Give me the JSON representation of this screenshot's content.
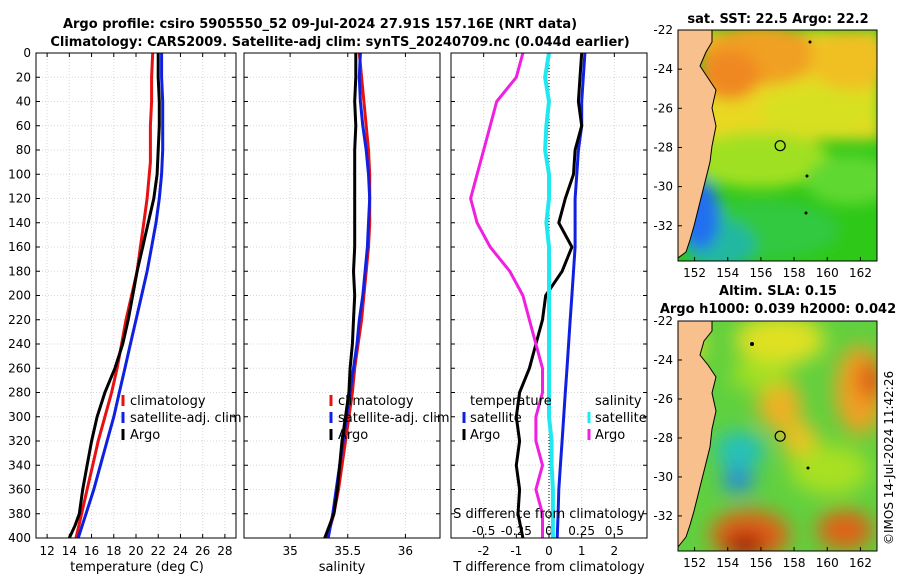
{
  "title_line1": "Argo profile: csiro 5905550_52 09-Jul-2024 27.91S 157.16E (NRT data)",
  "title_line2": "Climatology: CARS2009. Satellite-adj clim: synTS_20240709.nc (0.044d earlier)",
  "watermark": "©IMOS 14-Jul-2024 11:42:26",
  "colors": {
    "red": "#e81010",
    "blue": "#1020e0",
    "black": "#000000",
    "cyan": "#20e8f0",
    "magenta": "#f020e0",
    "land": "#f7c08c"
  },
  "chart_data": [
    {
      "type": "line",
      "id": "temperature",
      "xlabel": "temperature (deg C)",
      "ylabel": "",
      "xlim": [
        11,
        29
      ],
      "ylim": [
        400,
        0
      ],
      "xticks": [
        "12",
        "14",
        "16",
        "18",
        "20",
        "22",
        "24",
        "26",
        "28"
      ],
      "yticks": [
        "0",
        "20",
        "40",
        "60",
        "80",
        "100",
        "120",
        "140",
        "160",
        "180",
        "200",
        "220",
        "240",
        "260",
        "280",
        "300",
        "320",
        "340",
        "360",
        "380",
        "400"
      ],
      "grid": true,
      "legend": [
        "climatology",
        "satellite-adj. clim",
        "Argo"
      ],
      "series": [
        {
          "name": "climatology",
          "color": "#e81010",
          "x": [
            21.5,
            21.4,
            21.4,
            21.3,
            21.3,
            21.3,
            21.2,
            21.0,
            20.7,
            20.4,
            20.1,
            19.6,
            19.1,
            18.7,
            18.3,
            17.8,
            17.2,
            16.6,
            16.1,
            15.6,
            15.1,
            14.6
          ],
          "y": [
            0,
            20,
            40,
            60,
            80,
            90,
            100,
            120,
            140,
            160,
            180,
            200,
            220,
            240,
            260,
            280,
            300,
            320,
            340,
            360,
            380,
            400
          ]
        },
        {
          "name": "satellite-adj. clim",
          "color": "#1020e0",
          "x": [
            22.3,
            22.3,
            22.4,
            22.4,
            22.4,
            22.3,
            22.1,
            21.8,
            21.4,
            21.0,
            20.5,
            20.0,
            19.5,
            19.0,
            18.5,
            18.0,
            17.4,
            16.8,
            16.2,
            15.5,
            14.8
          ],
          "y": [
            0,
            20,
            40,
            60,
            80,
            100,
            120,
            140,
            160,
            180,
            200,
            220,
            240,
            260,
            280,
            300,
            320,
            340,
            360,
            380,
            400
          ]
        },
        {
          "name": "Argo",
          "color": "#000000",
          "x": [
            22.0,
            22.0,
            22.1,
            22.1,
            22.0,
            21.9,
            21.6,
            21.1,
            20.6,
            20.1,
            19.7,
            19.3,
            18.8,
            18.1,
            17.2,
            16.5,
            16.0,
            15.6,
            15.2,
            14.9,
            14.5,
            14.0
          ],
          "y": [
            0,
            20,
            40,
            60,
            80,
            100,
            120,
            140,
            160,
            180,
            200,
            220,
            240,
            260,
            280,
            300,
            320,
            340,
            360,
            380,
            390,
            400
          ]
        }
      ]
    },
    {
      "type": "line",
      "id": "salinity",
      "xlabel": "salinity",
      "ylabel": "",
      "xlim": [
        34.6,
        36.3
      ],
      "ylim": [
        400,
        0
      ],
      "xticks": [
        "35",
        "35.5",
        "36"
      ],
      "grid": true,
      "legend": [
        "climatology",
        "satellite-adj. clim",
        "Argo"
      ],
      "series": [
        {
          "name": "climatology",
          "color": "#e81010",
          "x": [
            35.6,
            35.62,
            35.64,
            35.66,
            35.68,
            35.69,
            35.69,
            35.69,
            35.68,
            35.66,
            35.64,
            35.62,
            35.59,
            35.56,
            35.54,
            35.51,
            35.48,
            35.45,
            35.42,
            35.38,
            35.35,
            35.32
          ],
          "y": [
            0,
            20,
            40,
            60,
            80,
            100,
            120,
            140,
            160,
            180,
            200,
            220,
            240,
            260,
            280,
            300,
            320,
            340,
            360,
            380,
            390,
            400
          ]
        },
        {
          "name": "satellite-adj. clim",
          "color": "#1020e0",
          "x": [
            35.61,
            35.6,
            35.61,
            35.63,
            35.66,
            35.68,
            35.69,
            35.68,
            35.67,
            35.65,
            35.63,
            35.6,
            35.58,
            35.55,
            35.52,
            35.49,
            35.46,
            35.43,
            35.4,
            35.37,
            35.33
          ],
          "y": [
            0,
            20,
            40,
            60,
            80,
            100,
            120,
            140,
            160,
            180,
            200,
            220,
            240,
            260,
            280,
            300,
            320,
            340,
            360,
            380,
            400
          ]
        },
        {
          "name": "Argo",
          "color": "#000000",
          "x": [
            35.57,
            35.57,
            35.56,
            35.57,
            35.56,
            35.56,
            35.56,
            35.56,
            35.56,
            35.55,
            35.56,
            35.55,
            35.54,
            35.52,
            35.51,
            35.48,
            35.45,
            35.43,
            35.41,
            35.38,
            35.34,
            35.3
          ],
          "y": [
            0,
            20,
            40,
            60,
            80,
            100,
            120,
            140,
            160,
            180,
            200,
            220,
            240,
            260,
            280,
            300,
            320,
            340,
            360,
            380,
            390,
            400
          ]
        }
      ]
    },
    {
      "type": "line",
      "id": "difference",
      "xlabel": "T difference from climatology",
      "top_axis_label": "S difference from climatology",
      "top_ticks": [
        "-0.5",
        "-0.25",
        "0",
        "0.25",
        "0.5"
      ],
      "xlim": [
        -3,
        3
      ],
      "ylim": [
        400,
        0
      ],
      "xticks": [
        "-2",
        "-1",
        "0",
        "1",
        "2"
      ],
      "grid": true,
      "legend_left_title": "temperature",
      "legend_right_title": "salinity",
      "legend": [
        "satellite",
        "Argo",
        "satellite",
        "Argo"
      ],
      "series": [
        {
          "name": "T satellite",
          "color": "#1020e0",
          "x": [
            1.1,
            1.05,
            1.0,
            1.0,
            0.9,
            0.85,
            0.8,
            0.8,
            0.8,
            0.75,
            0.7,
            0.65,
            0.6,
            0.55,
            0.5,
            0.45,
            0.4,
            0.35,
            0.3,
            0.28,
            0.25
          ],
          "y": [
            0,
            20,
            40,
            60,
            80,
            100,
            120,
            140,
            160,
            180,
            200,
            220,
            240,
            260,
            280,
            300,
            320,
            340,
            360,
            380,
            400
          ]
        },
        {
          "name": "T Argo",
          "color": "#000000",
          "x": [
            1.0,
            0.95,
            0.9,
            1.0,
            0.8,
            0.75,
            0.5,
            0.3,
            0.7,
            0.4,
            -0.1,
            -0.2,
            -0.4,
            -0.6,
            -0.9,
            -1.0,
            -0.9,
            -1.0,
            -0.9,
            -0.95,
            -0.8
          ],
          "y": [
            0,
            20,
            40,
            60,
            80,
            100,
            120,
            140,
            160,
            180,
            200,
            220,
            240,
            260,
            280,
            300,
            320,
            340,
            360,
            380,
            400
          ]
        },
        {
          "name": "S satellite",
          "color": "#20e8f0",
          "x": [
            0.0,
            -0.03,
            0.0,
            -0.02,
            -0.03,
            0.0,
            0.0,
            -0.02,
            0.0,
            0.0,
            0.0,
            0.0,
            0.0,
            0.0,
            0.0,
            0.0,
            0.02,
            0.02,
            0.03,
            0.03,
            0.03
          ],
          "y": [
            0,
            20,
            40,
            60,
            80,
            100,
            120,
            140,
            160,
            180,
            200,
            220,
            240,
            260,
            280,
            300,
            320,
            340,
            360,
            380,
            400
          ]
        },
        {
          "name": "S Argo",
          "color": "#f020e0",
          "x": [
            -0.2,
            -0.25,
            -0.4,
            -0.45,
            -0.5,
            -0.55,
            -0.6,
            -0.55,
            -0.45,
            -0.3,
            -0.2,
            -0.15,
            -0.1,
            -0.05,
            -0.05,
            -0.1,
            -0.1,
            -0.05,
            -0.1,
            -0.05,
            -0.05
          ],
          "y": [
            0,
            20,
            40,
            60,
            80,
            100,
            120,
            140,
            160,
            180,
            200,
            220,
            240,
            260,
            280,
            300,
            320,
            340,
            360,
            380,
            400
          ]
        }
      ]
    },
    {
      "type": "heatmap",
      "id": "sst-map",
      "title": "sat. SST: 22.5 Argo: 22.2",
      "xticks": [
        "152",
        "154",
        "156",
        "158",
        "160",
        "162"
      ],
      "yticks": [
        "-22",
        "-24",
        "-26",
        "-28",
        "-30",
        "-32"
      ],
      "xlim": [
        151,
        163
      ],
      "ylim": [
        -33.8,
        -22
      ],
      "profile_marker": [
        157.16,
        -27.91
      ]
    },
    {
      "type": "heatmap",
      "id": "sla-map",
      "title": "Altim. SLA: 0.15",
      "subtitle": "Argo h1000: 0.039 h2000: 0.042",
      "xticks": [
        "152",
        "154",
        "156",
        "158",
        "160",
        "162"
      ],
      "yticks": [
        "-22",
        "-24",
        "-26",
        "-28",
        "-30",
        "-32"
      ],
      "xlim": [
        151,
        163
      ],
      "ylim": [
        -33.8,
        -22
      ],
      "profile_marker": [
        157.16,
        -27.91
      ]
    }
  ]
}
